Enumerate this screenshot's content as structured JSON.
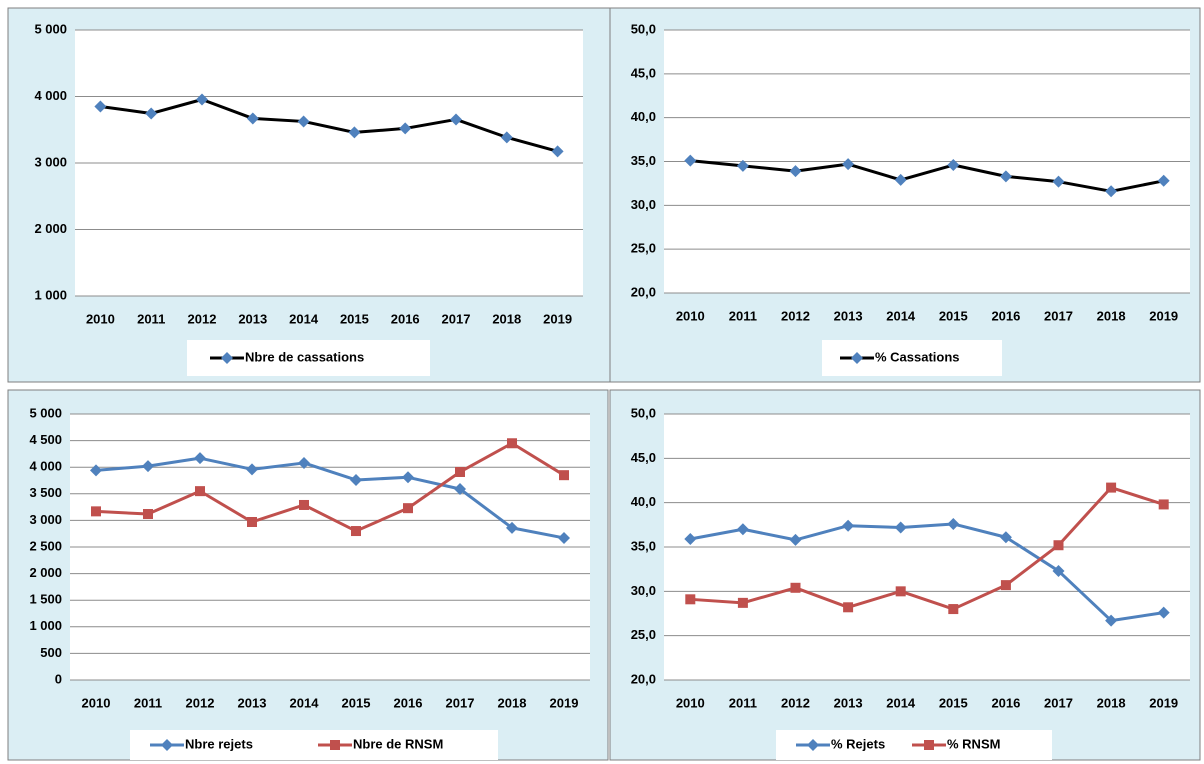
{
  "chart_data": [
    {
      "type": "line",
      "categories": [
        "2010",
        "2011",
        "2012",
        "2013",
        "2014",
        "2015",
        "2016",
        "2017",
        "2018",
        "2019"
      ],
      "series": [
        {
          "name": "Nbre de cassations",
          "color": "#000000",
          "marker": "diamond",
          "marker_color": "#4f81bd",
          "values": [
            3850,
            3745,
            3955,
            3670,
            3625,
            3460,
            3520,
            3655,
            3385,
            3175
          ]
        }
      ],
      "ylim": [
        1000,
        5000
      ],
      "yticks": [
        {
          "value": 1000,
          "label": "1 000"
        },
        {
          "value": 2000,
          "label": "2 000"
        },
        {
          "value": 3000,
          "label": "3 000"
        },
        {
          "value": 4000,
          "label": "4 000"
        },
        {
          "value": 5000,
          "label": "5 000"
        }
      ],
      "grid": true,
      "legend": "bottom"
    },
    {
      "type": "line",
      "categories": [
        "2010",
        "2011",
        "2012",
        "2013",
        "2014",
        "2015",
        "2016",
        "2017",
        "2018",
        "2019"
      ],
      "series": [
        {
          "name": "% Cassations",
          "color": "#000000",
          "marker": "diamond",
          "marker_color": "#4f81bd",
          "values": [
            35.1,
            34.5,
            33.9,
            34.7,
            32.9,
            34.6,
            33.3,
            32.7,
            31.6,
            32.8
          ]
        }
      ],
      "ylim": [
        20,
        50
      ],
      "yticks": [
        {
          "value": 20,
          "label": "20,0"
        },
        {
          "value": 25,
          "label": "25,0"
        },
        {
          "value": 30,
          "label": "30,0"
        },
        {
          "value": 35,
          "label": "35,0"
        },
        {
          "value": 40,
          "label": "40,0"
        },
        {
          "value": 45,
          "label": "45,0"
        },
        {
          "value": 50,
          "label": "50,0"
        }
      ],
      "grid": true,
      "legend": "bottom"
    },
    {
      "type": "line",
      "categories": [
        "2010",
        "2011",
        "2012",
        "2013",
        "2014",
        "2015",
        "2016",
        "2017",
        "2018",
        "2019"
      ],
      "series": [
        {
          "name": "Nbre rejets",
          "color": "#4f81bd",
          "marker": "diamond",
          "marker_color": "#4f81bd",
          "values": [
            3940,
            4020,
            4170,
            3960,
            4080,
            3760,
            3810,
            3590,
            2860,
            2670
          ]
        },
        {
          "name": "Nbre de RNSM",
          "color": "#c0504d",
          "marker": "square",
          "marker_color": "#c0504d",
          "values": [
            3170,
            3120,
            3550,
            2970,
            3290,
            2800,
            3230,
            3910,
            4450,
            3850
          ]
        }
      ],
      "ylim": [
        0,
        5000
      ],
      "yticks": [
        0,
        500,
        {
          "value": 1000,
          "label": "1 000"
        },
        {
          "value": 1500,
          "label": "1 500"
        },
        {
          "value": 2000,
          "label": "2 000"
        },
        {
          "value": 2500,
          "label": "2 500"
        },
        {
          "value": 3000,
          "label": "3 000"
        },
        {
          "value": 3500,
          "label": "3 500"
        },
        {
          "value": 4000,
          "label": "4 000"
        },
        {
          "value": 4500,
          "label": "4 500"
        },
        {
          "value": 5000,
          "label": "5 000"
        }
      ],
      "grid": true,
      "legend": "bottom"
    },
    {
      "type": "line",
      "categories": [
        "2010",
        "2011",
        "2012",
        "2013",
        "2014",
        "2015",
        "2016",
        "2017",
        "2018",
        "2019"
      ],
      "series": [
        {
          "name": "% Rejets",
          "color": "#4f81bd",
          "marker": "diamond",
          "marker_color": "#4f81bd",
          "values": [
            35.9,
            37.0,
            35.8,
            37.4,
            37.2,
            37.6,
            36.1,
            32.3,
            26.7,
            27.6
          ]
        },
        {
          "name": "% RNSM",
          "color": "#c0504d",
          "marker": "square",
          "marker_color": "#c0504d",
          "values": [
            29.1,
            28.7,
            30.4,
            28.2,
            30.0,
            28.0,
            30.7,
            35.2,
            41.7,
            39.8
          ]
        }
      ],
      "ylim": [
        20,
        50
      ],
      "yticks": [
        {
          "value": 20,
          "label": "20,0"
        },
        {
          "value": 25,
          "label": "25,0"
        },
        {
          "value": 30,
          "label": "30,0"
        },
        {
          "value": 35,
          "label": "35,0"
        },
        {
          "value": 40,
          "label": "40,0"
        },
        {
          "value": 45,
          "label": "45,0"
        },
        {
          "value": 50,
          "label": "50,0"
        }
      ],
      "grid": true,
      "legend": "bottom"
    }
  ]
}
